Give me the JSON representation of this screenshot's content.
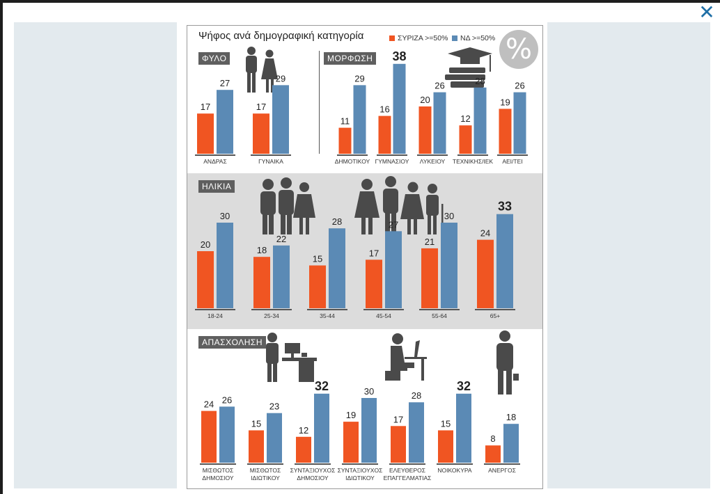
{
  "close_icon": "close-icon",
  "chart_data": {
    "type": "bar",
    "title": "Ψήφος ανά δημογραφική κατηγορία",
    "legend": [
      {
        "name": "ΣΥΡΙΖΑ >=50%",
        "color": "#f05522"
      },
      {
        "name": "ΝΔ >=50%",
        "color": "#5b8ab5"
      }
    ],
    "badge": "%",
    "panels": [
      {
        "label": "ΦΥΛΟ",
        "categories": [
          "ΑΝΔΡΑΣ",
          "ΓΥΝΑΙΚΑ"
        ],
        "series": [
          {
            "name": "ΣΥΡΙΖΑ >=50%",
            "values": [
              17,
              17
            ]
          },
          {
            "name": "ΝΔ >=50%",
            "values": [
              27,
              29
            ]
          }
        ],
        "emphasis": []
      },
      {
        "label": "ΜΟΡΦΩΣΗ",
        "categories": [
          "ΔΗΜΟΤΙΚΟΥ",
          "ΓΥΜΝΑΣΙΟΥ",
          "ΛΥΚΕΙΟΥ",
          "ΤΕΧΝΙΚΗΣ/ΙΕΚ",
          "ΑΕΙ/ΤΕΙ"
        ],
        "series": [
          {
            "name": "ΣΥΡΙΖΑ >=50%",
            "values": [
              11,
              16,
              20,
              12,
              19
            ]
          },
          {
            "name": "ΝΔ >=50%",
            "values": [
              29,
              38,
              26,
              28,
              26
            ]
          }
        ],
        "emphasis": [
          1
        ]
      },
      {
        "label": "ΗΛΙΚΙΑ",
        "categories": [
          "18-24",
          "25-34",
          "35-44",
          "45-54",
          "55-64",
          "65+"
        ],
        "series": [
          {
            "name": "ΣΥΡΙΖΑ >=50%",
            "values": [
              20,
              18,
              15,
              17,
              21,
              24
            ]
          },
          {
            "name": "ΝΔ >=50%",
            "values": [
              30,
              22,
              28,
              27,
              30,
              33
            ]
          }
        ],
        "emphasis": [
          5
        ]
      },
      {
        "label": "ΑΠΑΣΧΟΛΗΣΗ",
        "categories": [
          [
            "ΜΙΣΘΩΤΟΣ",
            "ΔΗΜΟΣΙΟΥ"
          ],
          [
            "ΜΙΣΘΩΤΟΣ",
            "ΙΔΙΩΤΙΚΟΥ"
          ],
          [
            "ΣΥΝΤΑΞΙΟΥΧΟΣ",
            "ΔΗΜΟΣΙΟΥ"
          ],
          [
            "ΣΥΝΤΑΞΙΟΥΧΟΣ",
            "ΙΔΙΩΤΙΚΟΥ"
          ],
          [
            "ΕΛΕΥΘΕΡΟΣ",
            "ΕΠΑΓΓΕΛΜΑΤΙΑΣ"
          ],
          [
            "ΝΟΙΚΟΚΥΡΑ"
          ],
          [
            "ΑΝΕΡΓΟΣ"
          ]
        ],
        "series": [
          {
            "name": "ΣΥΡΙΖΑ >=50%",
            "values": [
              24,
              15,
              12,
              19,
              17,
              15,
              8
            ]
          },
          {
            "name": "ΝΔ >=50%",
            "values": [
              26,
              23,
              32,
              30,
              28,
              32,
              18
            ]
          }
        ],
        "emphasis": [
          2,
          5
        ]
      }
    ]
  }
}
